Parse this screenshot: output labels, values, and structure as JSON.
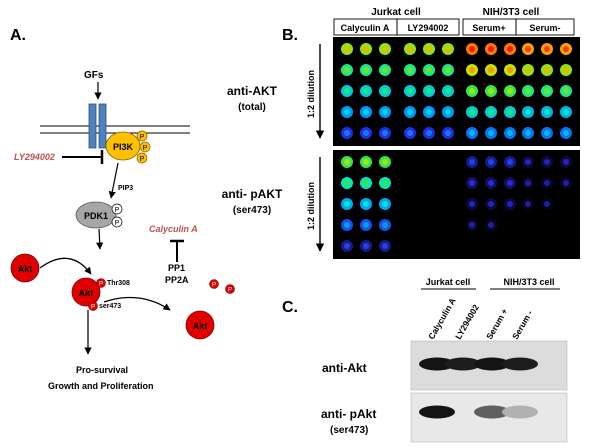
{
  "panel_a": {
    "label": "A.",
    "gfs": "GFs",
    "pi3k": "PI3K",
    "p": "P",
    "ly294002": "LY294002",
    "pip3": "PIP3",
    "pdk1": "PDK1",
    "calyculin": "Calyculin A",
    "pp1": "PP1",
    "pp2a": "PP2A",
    "akt": "Akt",
    "thr308": "Thr308",
    "ser473": "ser473",
    "prosurvival": "Pro-survival",
    "growth": "Growth and Proliferation",
    "colors": {
      "receptor": "#4f81bd",
      "pi3k": "#ffc000",
      "pdk1": "#a6a6a6",
      "akt": "#e00000",
      "inhibitor_text": "#c0504d"
    }
  },
  "panel_b": {
    "label": "B.",
    "group_jurkat": "Jurkat cell",
    "group_nih": "NIH/3T3 cell",
    "lanes": [
      "Calyculin A",
      "LY294002",
      "Serum+",
      "Serum-"
    ],
    "dilution": "1:2 dilution",
    "row_labels": [
      {
        "line1": "anti-AKT",
        "line2": "(total)"
      },
      {
        "line1": "anti- pAKT",
        "line2": "(ser473)"
      }
    ],
    "note": "Spot intensity levels (0=no signal, 1=max) per blot: 5 dilution rows x 12 spots",
    "total_akt": [
      [
        0.7,
        0.7,
        0.7,
        0.7,
        0.7,
        0.7,
        0.9,
        0.9,
        0.9,
        0.85,
        0.85,
        0.85
      ],
      [
        0.55,
        0.55,
        0.55,
        0.55,
        0.55,
        0.55,
        0.75,
        0.75,
        0.75,
        0.7,
        0.7,
        0.7
      ],
      [
        0.45,
        0.45,
        0.45,
        0.45,
        0.45,
        0.45,
        0.6,
        0.6,
        0.6,
        0.55,
        0.55,
        0.55
      ],
      [
        0.35,
        0.35,
        0.35,
        0.35,
        0.35,
        0.35,
        0.45,
        0.45,
        0.45,
        0.4,
        0.4,
        0.4
      ],
      [
        0.2,
        0.2,
        0.2,
        0.2,
        0.2,
        0.2,
        0.3,
        0.3,
        0.3,
        0.3,
        0.3,
        0.3
      ]
    ],
    "p_akt": [
      [
        0.6,
        0.6,
        0.6,
        0,
        0,
        0,
        0.12,
        0.12,
        0.12,
        0.05,
        0.05,
        0.05
      ],
      [
        0.5,
        0.5,
        0.5,
        0,
        0,
        0,
        0.08,
        0.08,
        0.08,
        0.03,
        0.03,
        0.03
      ],
      [
        0.38,
        0.38,
        0.38,
        0,
        0,
        0,
        0.05,
        0.05,
        0.05,
        0.02,
        0.02,
        0
      ],
      [
        0.25,
        0.25,
        0.25,
        0,
        0,
        0,
        0.03,
        0.03,
        0,
        0,
        0,
        0
      ],
      [
        0.12,
        0.12,
        0.12,
        0,
        0,
        0,
        0,
        0,
        0,
        0,
        0,
        0
      ]
    ]
  },
  "panel_c": {
    "label": "C.",
    "group_jurkat": "Jurkat cell",
    "group_nih": "NIH/3T3 cell",
    "lanes": [
      "Calyculin A",
      "LY294002",
      "Serum +",
      "Serum -"
    ],
    "row_labels": [
      {
        "line1": "anti-Akt",
        "line2": ""
      },
      {
        "line1": "anti- pAkt",
        "line2": "(ser473)"
      }
    ],
    "note": "Band intensities per lane (0=none, 1=strong)",
    "akt_bands": [
      0.95,
      0.9,
      0.95,
      0.9
    ],
    "pakt_bands": [
      0.95,
      0.0,
      0.55,
      0.12
    ]
  }
}
